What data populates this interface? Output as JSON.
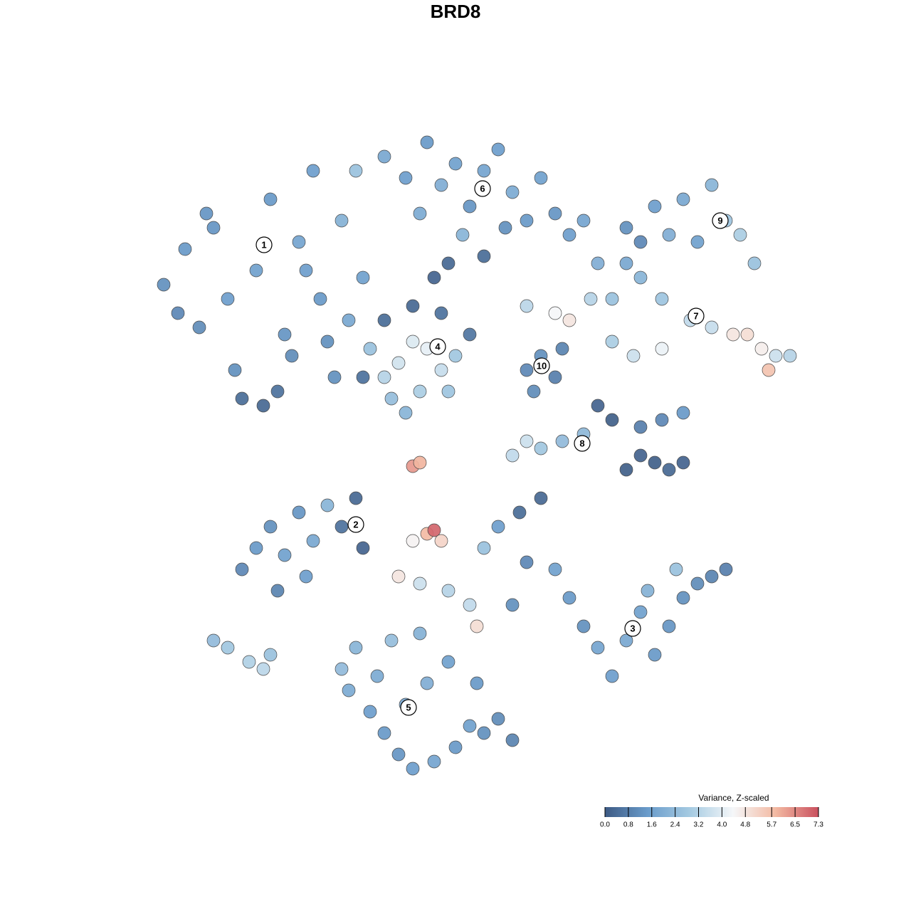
{
  "chart_data": {
    "type": "scatter",
    "title": "BRD8",
    "x": [
      5,
      8,
      10,
      12,
      14,
      15,
      18,
      20,
      22,
      24,
      26,
      27,
      29,
      30,
      32,
      33,
      16,
      19,
      21,
      23,
      11,
      7,
      25,
      28,
      31,
      36,
      39,
      42,
      44,
      46,
      48,
      50,
      52,
      54,
      56,
      58,
      60,
      62,
      64,
      41,
      47,
      53,
      50,
      45,
      43,
      70,
      74,
      78,
      82,
      84,
      86,
      88,
      76,
      80,
      72,
      56,
      60,
      62,
      65,
      68,
      72,
      75,
      79,
      82,
      85,
      87,
      89,
      91,
      93,
      90,
      75,
      71,
      68,
      66,
      70,
      34,
      36,
      38,
      40,
      42,
      44,
      46,
      37,
      41,
      45,
      36,
      40,
      44,
      48,
      33,
      39,
      56,
      58,
      60,
      57,
      61,
      54,
      56,
      58,
      61,
      64,
      66,
      68,
      70,
      72,
      74,
      76,
      78,
      72,
      75,
      78,
      40,
      41,
      16,
      18,
      20,
      22,
      24,
      26,
      28,
      30,
      33,
      32,
      21,
      25,
      40,
      42,
      43,
      44,
      38,
      41,
      45,
      48,
      49,
      50,
      52,
      55,
      58,
      60,
      62,
      64,
      66,
      68,
      70,
      72,
      74,
      76,
      78,
      80,
      82,
      84,
      77,
      73,
      56,
      54,
      30,
      32,
      31,
      34,
      36,
      38,
      40,
      43,
      46,
      48,
      50,
      52,
      54,
      39,
      42,
      45,
      37,
      41,
      35,
      49,
      12,
      14,
      17,
      19,
      20
    ],
    "y": [
      70,
      75,
      64,
      78,
      68,
      58,
      72,
      82,
      63,
      76,
      86,
      68,
      57,
      79,
      86,
      71,
      54,
      53,
      55,
      60,
      80,
      66,
      72,
      62,
      65,
      88,
      85,
      90,
      84,
      87,
      81,
      86,
      89,
      83,
      79,
      85,
      80,
      77,
      79,
      80,
      77,
      78,
      74,
      73,
      71,
      78,
      81,
      82,
      84,
      79,
      77,
      73,
      77,
      76,
      76,
      67,
      66,
      65,
      68,
      68,
      71,
      68,
      65,
      64,
      63,
      63,
      61,
      60,
      60,
      58,
      61,
      60,
      62,
      73,
      73,
      61,
      57,
      59,
      62,
      61,
      58,
      60,
      54,
      55,
      55,
      65,
      67,
      66,
      63,
      57,
      52,
      58,
      60,
      57,
      55,
      61,
      46,
      48,
      47,
      48,
      49,
      53,
      51,
      44,
      46,
      45,
      44,
      45,
      50,
      51,
      52,
      44.5,
      45,
      30,
      33,
      36,
      32,
      38,
      34,
      39,
      36,
      33,
      40,
      27,
      29,
      34,
      35,
      35.5,
      34,
      29,
      28,
      27,
      25,
      22,
      33,
      36,
      38,
      40,
      30,
      26,
      22,
      19,
      15,
      20,
      24,
      18,
      22,
      26,
      28,
      29,
      30,
      30,
      27,
      31,
      25,
      16,
      19,
      13,
      10,
      7,
      4,
      2,
      3,
      5,
      8,
      7,
      9,
      6,
      11,
      14,
      17,
      20,
      21,
      15,
      14,
      20,
      19,
      17,
      16,
      18
    ],
    "values": [
      1.2,
      1.4,
      1.1,
      1.3,
      1.5,
      1.2,
      1.6,
      1.4,
      1.3,
      1.7,
      1.5,
      1.4,
      1.2,
      2.1,
      2.6,
      1.6,
      0.4,
      0.3,
      0.5,
      1.1,
      1.3,
      1.0,
      1.5,
      1.2,
      1.8,
      1.8,
      1.5,
      1.4,
      2.0,
      1.6,
      1.3,
      1.7,
      1.5,
      1.9,
      1.4,
      1.6,
      1.3,
      1.5,
      1.7,
      1.9,
      2.2,
      1.2,
      0.4,
      0.3,
      0.2,
      1.2,
      1.5,
      1.8,
      2.2,
      2.7,
      3.0,
      2.6,
      2.0,
      1.6,
      1.0,
      3.3,
      4.4,
      4.8,
      3.2,
      2.6,
      2.2,
      2.7,
      3.4,
      3.5,
      4.8,
      5.0,
      4.6,
      3.6,
      3.2,
      5.6,
      4.2,
      3.6,
      3.0,
      2.0,
      1.8,
      2.6,
      3.2,
      3.7,
      3.9,
      4.1,
      3.5,
      2.8,
      2.5,
      3.0,
      2.7,
      0.4,
      0.3,
      0.5,
      0.6,
      0.5,
      2.2,
      1.0,
      1.2,
      0.8,
      1.1,
      0.9,
      3.4,
      3.6,
      2.8,
      2.4,
      2.3,
      0.2,
      0.1,
      0.1,
      0.2,
      0.1,
      0.3,
      0.2,
      0.8,
      1.0,
      1.4,
      6.3,
      5.9,
      1.0,
      1.4,
      1.2,
      1.6,
      1.3,
      1.8,
      2.2,
      0.5,
      0.2,
      0.3,
      0.9,
      1.5,
      4.5,
      5.8,
      7.0,
      5.2,
      4.8,
      3.6,
      3.2,
      3.4,
      5.0,
      2.6,
      1.5,
      0.4,
      0.3,
      1.6,
      1.4,
      1.2,
      1.7,
      1.5,
      1.8,
      1.6,
      1.4,
      1.3,
      1.2,
      1.1,
      0.9,
      0.8,
      2.6,
      2.1,
      1.0,
      1.2,
      2.4,
      2.2,
      1.9,
      1.5,
      1.4,
      1.3,
      1.5,
      1.7,
      1.4,
      1.6,
      1.2,
      1.1,
      0.9,
      1.8,
      2.0,
      1.6,
      2.5,
      2.1,
      1.9,
      1.4,
      2.4,
      2.8,
      3.1,
      3.3,
      2.6
    ],
    "xlim": [
      0,
      100
    ],
    "ylim": [
      0,
      100
    ],
    "clim": [
      0,
      7.3
    ],
    "colorscale": [
      "#3d5a84",
      "#6a9ccb",
      "#a6cbe2",
      "#f5f7f9",
      "#f3b9a2",
      "#c9505e"
    ],
    "marker_edge_color": "#4a4a4a",
    "colorbar_title": "Variance, Z-scaled",
    "colorbar_ticks": [
      {
        "value": 0,
        "label": "0.0"
      },
      0.8,
      1.6,
      2.4,
      3.2,
      {
        "value": 4,
        "label": "4.0"
      },
      4.8,
      5.7,
      6.5,
      7.3
    ],
    "annotations": [
      {
        "text": "1",
        "x": 19.1,
        "y": 75.6
      },
      {
        "text": "2",
        "x": 32,
        "y": 36.3
      },
      {
        "text": "3",
        "x": 70.9,
        "y": 21.7
      },
      {
        "text": "4",
        "x": 43.5,
        "y": 61.3
      },
      {
        "text": "5",
        "x": 39.4,
        "y": 10.6
      },
      {
        "text": "6",
        "x": 49.8,
        "y": 83.5
      },
      {
        "text": "7",
        "x": 79.8,
        "y": 65.6
      },
      {
        "text": "8",
        "x": 63.8,
        "y": 47.7
      },
      {
        "text": "9",
        "x": 83.2,
        "y": 79
      },
      {
        "text": "10",
        "x": 58.1,
        "y": 58.6
      }
    ]
  }
}
